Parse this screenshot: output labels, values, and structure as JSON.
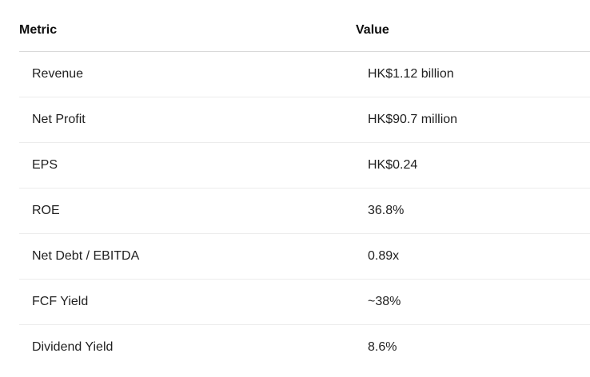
{
  "table": {
    "headers": {
      "metric": "Metric",
      "value": "Value"
    },
    "rows": [
      {
        "metric": "Revenue",
        "value": "HK$1.12 billion"
      },
      {
        "metric": "Net Profit",
        "value": "HK$90.7 million"
      },
      {
        "metric": "EPS",
        "value": "HK$0.24"
      },
      {
        "metric": "ROE",
        "value": "36.8%"
      },
      {
        "metric": "Net Debt / EBITDA",
        "value": "0.89x"
      },
      {
        "metric": "FCF Yield",
        "value": "~38%"
      },
      {
        "metric": "Dividend Yield",
        "value": "8.6%"
      }
    ]
  }
}
